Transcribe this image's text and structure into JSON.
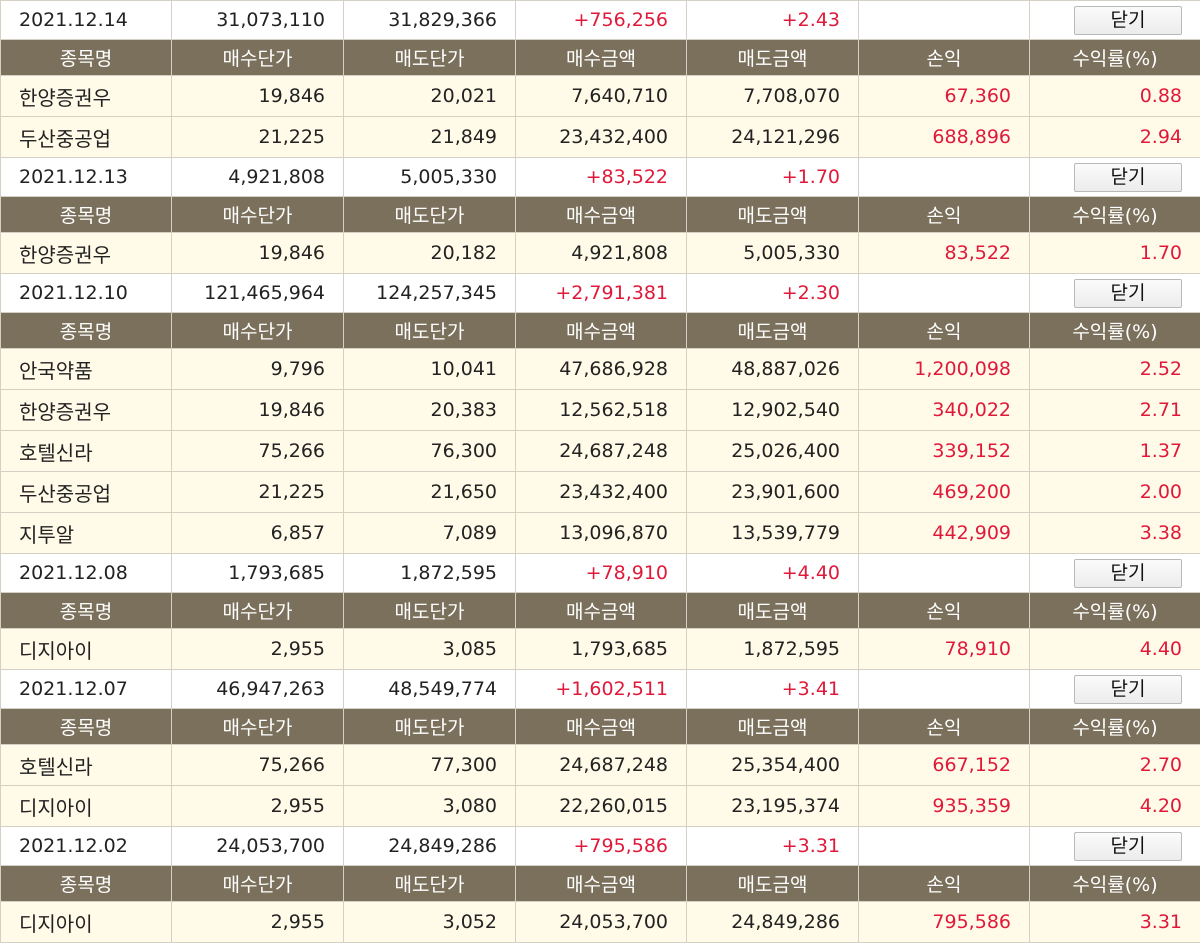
{
  "header_labels": [
    "종목명",
    "매수단가",
    "매도단가",
    "매수금액",
    "매도금액",
    "손익",
    "수익률(%)"
  ],
  "close_label": "닫기",
  "days": [
    {
      "date": "2021.12.14",
      "buy_total": "31,073,110",
      "sell_total": "31,829,366",
      "profit": "+756,256",
      "rate": "+2.43",
      "rows": [
        {
          "name": "한양증권우",
          "buy_price": "19,846",
          "sell_price": "20,021",
          "buy_amount": "7,640,710",
          "sell_amount": "7,708,070",
          "profit": "67,360",
          "rate": "0.88"
        },
        {
          "name": "두산중공업",
          "buy_price": "21,225",
          "sell_price": "21,849",
          "buy_amount": "23,432,400",
          "sell_amount": "24,121,296",
          "profit": "688,896",
          "rate": "2.94"
        }
      ]
    },
    {
      "date": "2021.12.13",
      "buy_total": "4,921,808",
      "sell_total": "5,005,330",
      "profit": "+83,522",
      "rate": "+1.70",
      "rows": [
        {
          "name": "한양증권우",
          "buy_price": "19,846",
          "sell_price": "20,182",
          "buy_amount": "4,921,808",
          "sell_amount": "5,005,330",
          "profit": "83,522",
          "rate": "1.70"
        }
      ]
    },
    {
      "date": "2021.12.10",
      "buy_total": "121,465,964",
      "sell_total": "124,257,345",
      "profit": "+2,791,381",
      "rate": "+2.30",
      "rows": [
        {
          "name": "안국약품",
          "buy_price": "9,796",
          "sell_price": "10,041",
          "buy_amount": "47,686,928",
          "sell_amount": "48,887,026",
          "profit": "1,200,098",
          "rate": "2.52"
        },
        {
          "name": "한양증권우",
          "buy_price": "19,846",
          "sell_price": "20,383",
          "buy_amount": "12,562,518",
          "sell_amount": "12,902,540",
          "profit": "340,022",
          "rate": "2.71"
        },
        {
          "name": "호텔신라",
          "buy_price": "75,266",
          "sell_price": "76,300",
          "buy_amount": "24,687,248",
          "sell_amount": "25,026,400",
          "profit": "339,152",
          "rate": "1.37"
        },
        {
          "name": "두산중공업",
          "buy_price": "21,225",
          "sell_price": "21,650",
          "buy_amount": "23,432,400",
          "sell_amount": "23,901,600",
          "profit": "469,200",
          "rate": "2.00"
        },
        {
          "name": "지투알",
          "buy_price": "6,857",
          "sell_price": "7,089",
          "buy_amount": "13,096,870",
          "sell_amount": "13,539,779",
          "profit": "442,909",
          "rate": "3.38"
        }
      ]
    },
    {
      "date": "2021.12.08",
      "buy_total": "1,793,685",
      "sell_total": "1,872,595",
      "profit": "+78,910",
      "rate": "+4.40",
      "rows": [
        {
          "name": "디지아이",
          "buy_price": "2,955",
          "sell_price": "3,085",
          "buy_amount": "1,793,685",
          "sell_amount": "1,872,595",
          "profit": "78,910",
          "rate": "4.40"
        }
      ]
    },
    {
      "date": "2021.12.07",
      "buy_total": "46,947,263",
      "sell_total": "48,549,774",
      "profit": "+1,602,511",
      "rate": "+3.41",
      "rows": [
        {
          "name": "호텔신라",
          "buy_price": "75,266",
          "sell_price": "77,300",
          "buy_amount": "24,687,248",
          "sell_amount": "25,354,400",
          "profit": "667,152",
          "rate": "2.70"
        },
        {
          "name": "디지아이",
          "buy_price": "2,955",
          "sell_price": "3,080",
          "buy_amount": "22,260,015",
          "sell_amount": "23,195,374",
          "profit": "935,359",
          "rate": "4.20"
        }
      ]
    },
    {
      "date": "2021.12.02",
      "buy_total": "24,053,700",
      "sell_total": "24,849,286",
      "profit": "+795,586",
      "rate": "+3.31",
      "rows": [
        {
          "name": "디지아이",
          "buy_price": "2,955",
          "sell_price": "3,052",
          "buy_amount": "24,053,700",
          "sell_amount": "24,849,286",
          "profit": "795,586",
          "rate": "3.31"
        }
      ]
    }
  ]
}
